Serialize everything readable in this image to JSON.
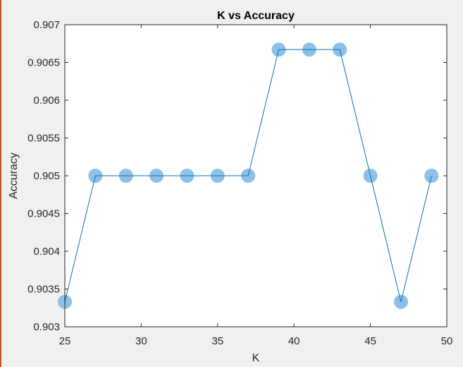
{
  "colors": {
    "figure_background": "#f0f0f0",
    "plot_background": "#ffffff",
    "axis": "#262626",
    "line": "#0072bd",
    "marker": "#8ec0e6"
  },
  "chart_data": {
    "type": "scatter",
    "title": "K vs Accuracy",
    "xlabel": "K",
    "ylabel": "Accuracy",
    "xlim": [
      25,
      50
    ],
    "ylim": [
      0.903,
      0.907
    ],
    "xticks": [
      25,
      30,
      35,
      40,
      45,
      50
    ],
    "yticks": [
      0.903,
      0.9035,
      0.904,
      0.9045,
      0.905,
      0.9055,
      0.906,
      0.9065,
      0.907
    ],
    "xtick_labels": [
      "25",
      "30",
      "35",
      "40",
      "45",
      "50"
    ],
    "ytick_labels": [
      "0.903",
      "0.9035",
      "0.904",
      "0.9045",
      "0.905",
      "0.9055",
      "0.906",
      "0.9065",
      "0.907"
    ],
    "grid": false,
    "series": [
      {
        "style": "markers+line",
        "x": [
          25,
          27,
          29,
          31,
          33,
          35,
          37,
          39,
          41,
          43,
          45,
          47,
          49
        ],
        "y": [
          0.90333,
          0.905,
          0.905,
          0.905,
          0.905,
          0.905,
          0.905,
          0.90667,
          0.90667,
          0.90667,
          0.905,
          0.90333,
          0.905
        ]
      }
    ]
  }
}
